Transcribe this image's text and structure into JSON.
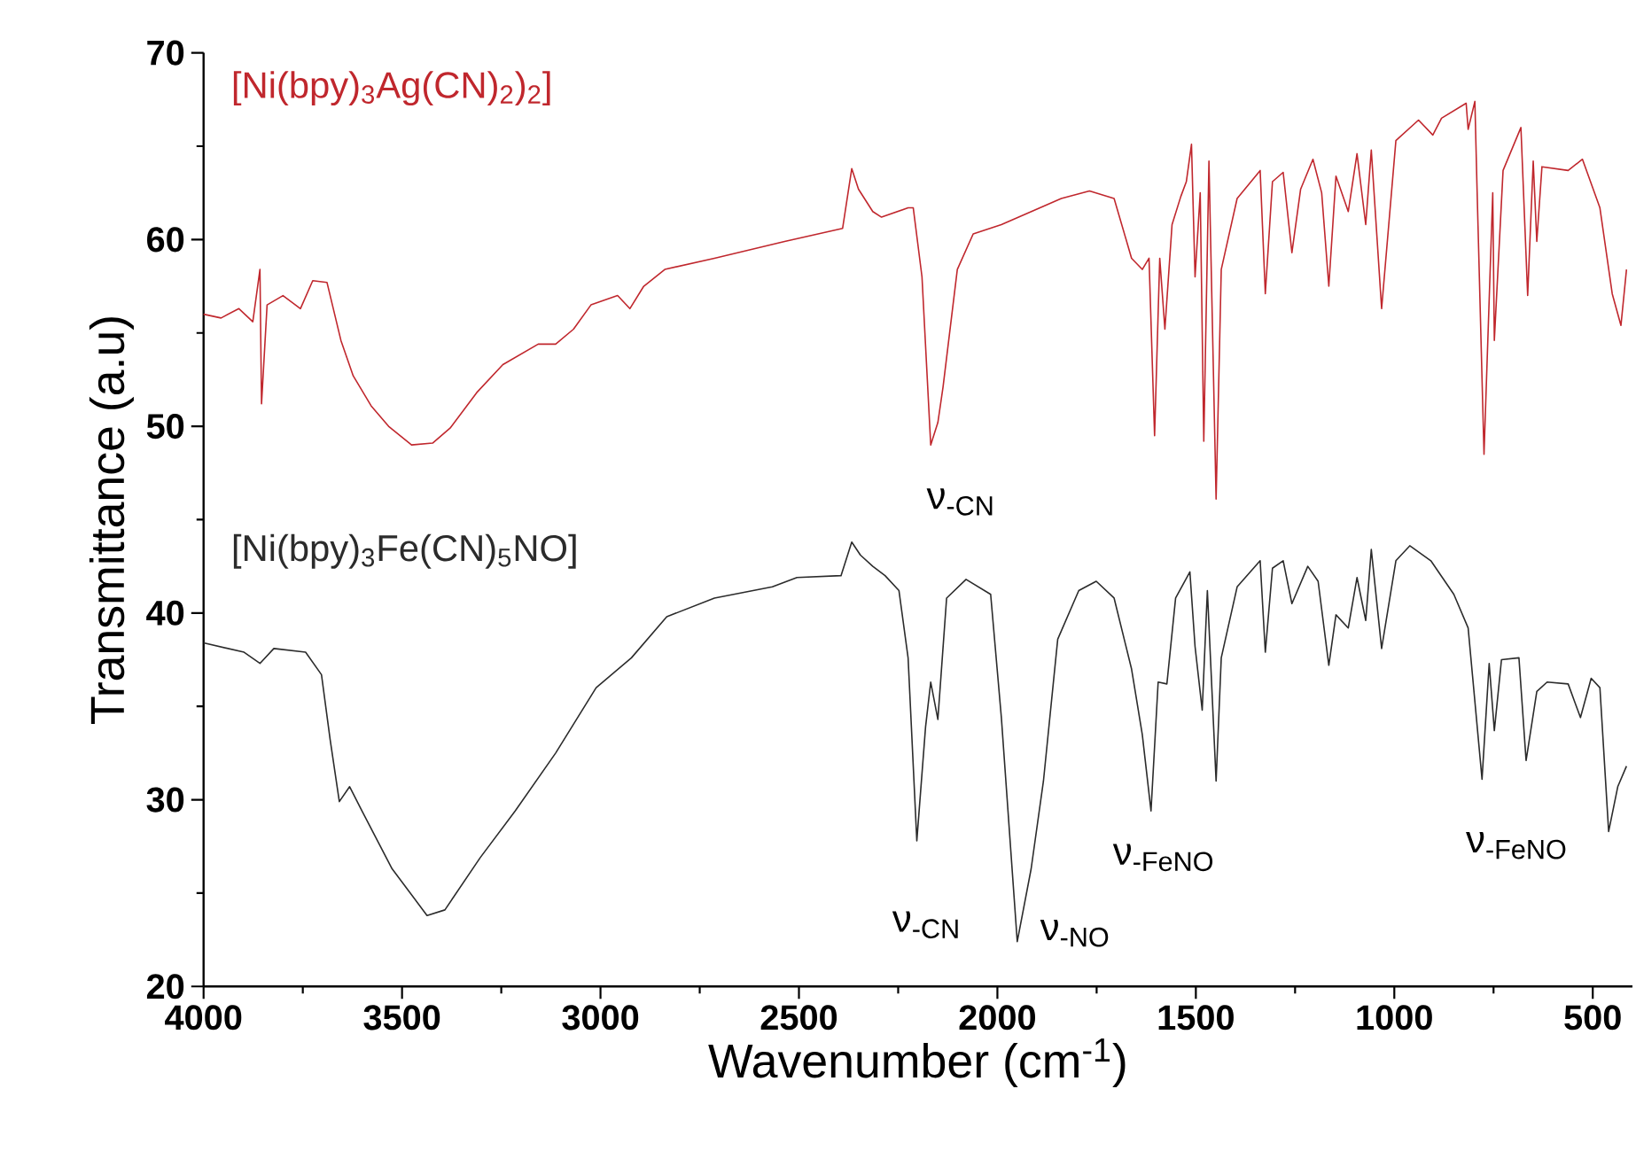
{
  "chart_data": {
    "type": "line",
    "xlabel": "Wavenumber (cm$^{-1}$)",
    "ylabel": "Transmittance (a.u)",
    "xlim": [
      4000,
      400
    ],
    "ylim": [
      20,
      70
    ],
    "xticks": [
      4000,
      3500,
      3000,
      2500,
      2000,
      1500,
      1000,
      500
    ],
    "yticks": [
      20,
      30,
      40,
      50,
      60,
      70
    ],
    "line_style": "solid",
    "series": [
      {
        "name": "[Ni(bpy)$_{3}$Ag(CN)$_{2}$)$_{2}$]",
        "color": "#c0272d",
        "x": [
          4000,
          3956,
          3911,
          3876,
          3858,
          3854,
          3840,
          3800,
          3756,
          3725,
          3689,
          3654,
          3623,
          3578,
          3534,
          3476,
          3423,
          3379,
          3312,
          3246,
          3157,
          3113,
          3068,
          3024,
          2957,
          2926,
          2891,
          2838,
          2713,
          2536,
          2390,
          2367,
          2350,
          2314,
          2292,
          2225,
          2212,
          2190,
          2168,
          2150,
          2137,
          2101,
          2061,
          1990,
          1839,
          1768,
          1706,
          1662,
          1635,
          1618,
          1604,
          1591,
          1578,
          1560,
          1538,
          1524,
          1511,
          1502,
          1489,
          1480,
          1467,
          1449,
          1436,
          1396,
          1338,
          1325,
          1307,
          1280,
          1258,
          1236,
          1205,
          1183,
          1165,
          1147,
          1116,
          1094,
          1072,
          1058,
          1032,
          996,
          939,
          903,
          881,
          819,
          814,
          797,
          792,
          774,
          752,
          748,
          726,
          681,
          664,
          650,
          641,
          628,
          562,
          526,
          482,
          451,
          429,
          415
        ],
        "values": [
          56.0,
          55.8,
          56.3,
          55.6,
          58.4,
          51.2,
          56.5,
          57.0,
          56.3,
          57.8,
          57.7,
          54.6,
          52.7,
          51.1,
          50.0,
          49.0,
          49.1,
          49.9,
          51.8,
          53.3,
          54.4,
          54.4,
          55.2,
          56.5,
          57.0,
          56.3,
          57.5,
          58.4,
          59.0,
          59.9,
          60.6,
          63.8,
          62.7,
          61.5,
          61.2,
          61.7,
          61.7,
          58.0,
          49.0,
          50.2,
          52.1,
          58.4,
          60.3,
          60.8,
          62.2,
          62.6,
          62.2,
          59.0,
          58.4,
          59.0,
          49.5,
          59.0,
          55.2,
          60.8,
          62.3,
          63.1,
          65.1,
          58.0,
          62.5,
          49.2,
          64.2,
          46.1,
          58.4,
          62.2,
          63.7,
          57.1,
          63.1,
          63.6,
          59.3,
          62.7,
          64.3,
          62.5,
          57.5,
          63.4,
          61.5,
          64.6,
          60.8,
          64.8,
          56.3,
          65.3,
          66.4,
          65.6,
          66.5,
          67.3,
          65.9,
          67.4,
          63.1,
          48.5,
          62.5,
          54.6,
          63.7,
          66.0,
          57.0,
          64.2,
          59.9,
          63.9,
          63.7,
          64.3,
          61.7,
          57.1,
          55.4,
          58.4
        ]
      },
      {
        "name": "[Ni(bpy)$_{3}$Fe(CN)$_{5}$NO]",
        "color": "#2b2b2b",
        "x": [
          4000,
          3898,
          3858,
          3823,
          3743,
          3703,
          3681,
          3658,
          3632,
          3601,
          3525,
          3437,
          3392,
          3303,
          3215,
          3113,
          3011,
          2922,
          2833,
          2713,
          2567,
          2505,
          2394,
          2367,
          2345,
          2314,
          2283,
          2248,
          2225,
          2203,
          2181,
          2168,
          2150,
          2128,
          2079,
          2017,
          1990,
          1950,
          1915,
          1884,
          1848,
          1795,
          1751,
          1706,
          1662,
          1635,
          1613,
          1595,
          1573,
          1551,
          1515,
          1502,
          1484,
          1471,
          1449,
          1436,
          1396,
          1338,
          1325,
          1307,
          1280,
          1258,
          1218,
          1192,
          1165,
          1147,
          1116,
          1094,
          1072,
          1058,
          1032,
          996,
          961,
          908,
          850,
          814,
          779,
          761,
          748,
          730,
          686,
          668,
          641,
          615,
          562,
          531,
          504,
          482,
          460,
          437,
          415
        ],
        "values": [
          38.4,
          37.9,
          37.3,
          38.1,
          37.9,
          36.7,
          33.2,
          29.9,
          30.7,
          29.4,
          26.3,
          23.8,
          24.1,
          26.9,
          29.4,
          32.5,
          36.0,
          37.6,
          39.8,
          40.8,
          41.4,
          41.9,
          42.0,
          43.8,
          43.1,
          42.5,
          42.0,
          41.2,
          37.6,
          27.8,
          33.9,
          36.3,
          34.3,
          40.8,
          41.8,
          41.0,
          34.4,
          22.4,
          26.3,
          31.0,
          38.6,
          41.2,
          41.7,
          40.8,
          37.0,
          33.5,
          29.4,
          36.3,
          36.2,
          40.8,
          42.2,
          38.2,
          34.8,
          41.2,
          31.0,
          37.6,
          41.4,
          42.8,
          37.9,
          42.4,
          42.8,
          40.5,
          42.5,
          41.7,
          37.2,
          39.9,
          39.2,
          41.9,
          39.6,
          43.4,
          38.1,
          42.8,
          43.6,
          42.8,
          41.0,
          39.2,
          31.1,
          37.3,
          33.7,
          37.5,
          37.6,
          32.1,
          35.8,
          36.3,
          36.2,
          34.4,
          36.5,
          36.0,
          28.3,
          30.7,
          31.8
        ]
      }
    ],
    "annotations": [
      "ν$_{-CN}$",
      "ν$_{-CN}$",
      "ν$_{-NO}$",
      "ν$_{-FeNO}$",
      "ν$_{-FeNO}$"
    ]
  }
}
